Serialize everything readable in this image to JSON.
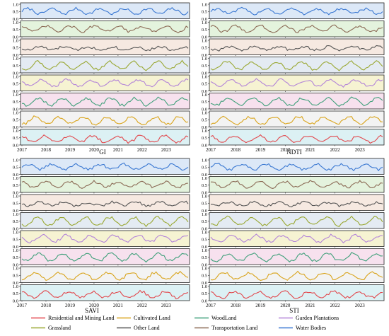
{
  "chart_data": {
    "type": "line",
    "index_labels": [
      "GI",
      "NDTI",
      "SAVI",
      "STI"
    ],
    "x_ticks": [
      "2017",
      "2018",
      "2019",
      "2020",
      "2021",
      "2022",
      "2023"
    ],
    "x_range": [
      "2017-01",
      "2023-12"
    ],
    "y_ticks": [
      "0.0",
      "0.5",
      "1.0"
    ],
    "ylim": [
      0,
      1.1
    ],
    "grid": false,
    "legend_placement": "bottom",
    "series": [
      {
        "name": "Water Bodies",
        "color": "#3a78d2",
        "bg": "#dce8f7",
        "mean": 0.52,
        "amp": 0.18,
        "phase": 0.0
      },
      {
        "name": "Transportation Land",
        "color": "#8b6a55",
        "bg": "#e4f3dd",
        "mean": 0.55,
        "amp": 0.2,
        "phase": 0.25
      },
      {
        "name": "Other Land",
        "color": "#555555",
        "bg": "#f6e9e1",
        "mean": 0.45,
        "amp": 0.12,
        "phase": 0.5
      },
      {
        "name": "Grassland",
        "color": "#9aa833",
        "bg": "#e4ebf3",
        "mean": 0.5,
        "amp": 0.28,
        "phase": 0.6
      },
      {
        "name": "Garden Plantations",
        "color": "#b384d8",
        "bg": "#f6f3d2",
        "mean": 0.55,
        "amp": 0.22,
        "phase": 0.4
      },
      {
        "name": "WoodLand",
        "color": "#3fa07a",
        "bg": "#f7e1ee",
        "mean": 0.5,
        "amp": 0.25,
        "phase": 0.55
      },
      {
        "name": "Cultivated Land",
        "color": "#d9a41c",
        "bg": "#f3f3f3",
        "mean": 0.45,
        "amp": 0.25,
        "phase": 0.7
      },
      {
        "name": "Residential and Mining Land",
        "color": "#e2474c",
        "bg": "#dcf1f4",
        "mean": 0.42,
        "amp": 0.22,
        "phase": 0.3
      }
    ],
    "legend_order": [
      "Residential and Mining Land",
      "Cultivated Land",
      "WoodLand",
      "Garden Plantations",
      "Grassland",
      "Other Land",
      "Transportation Land",
      "Water Bodies"
    ]
  }
}
